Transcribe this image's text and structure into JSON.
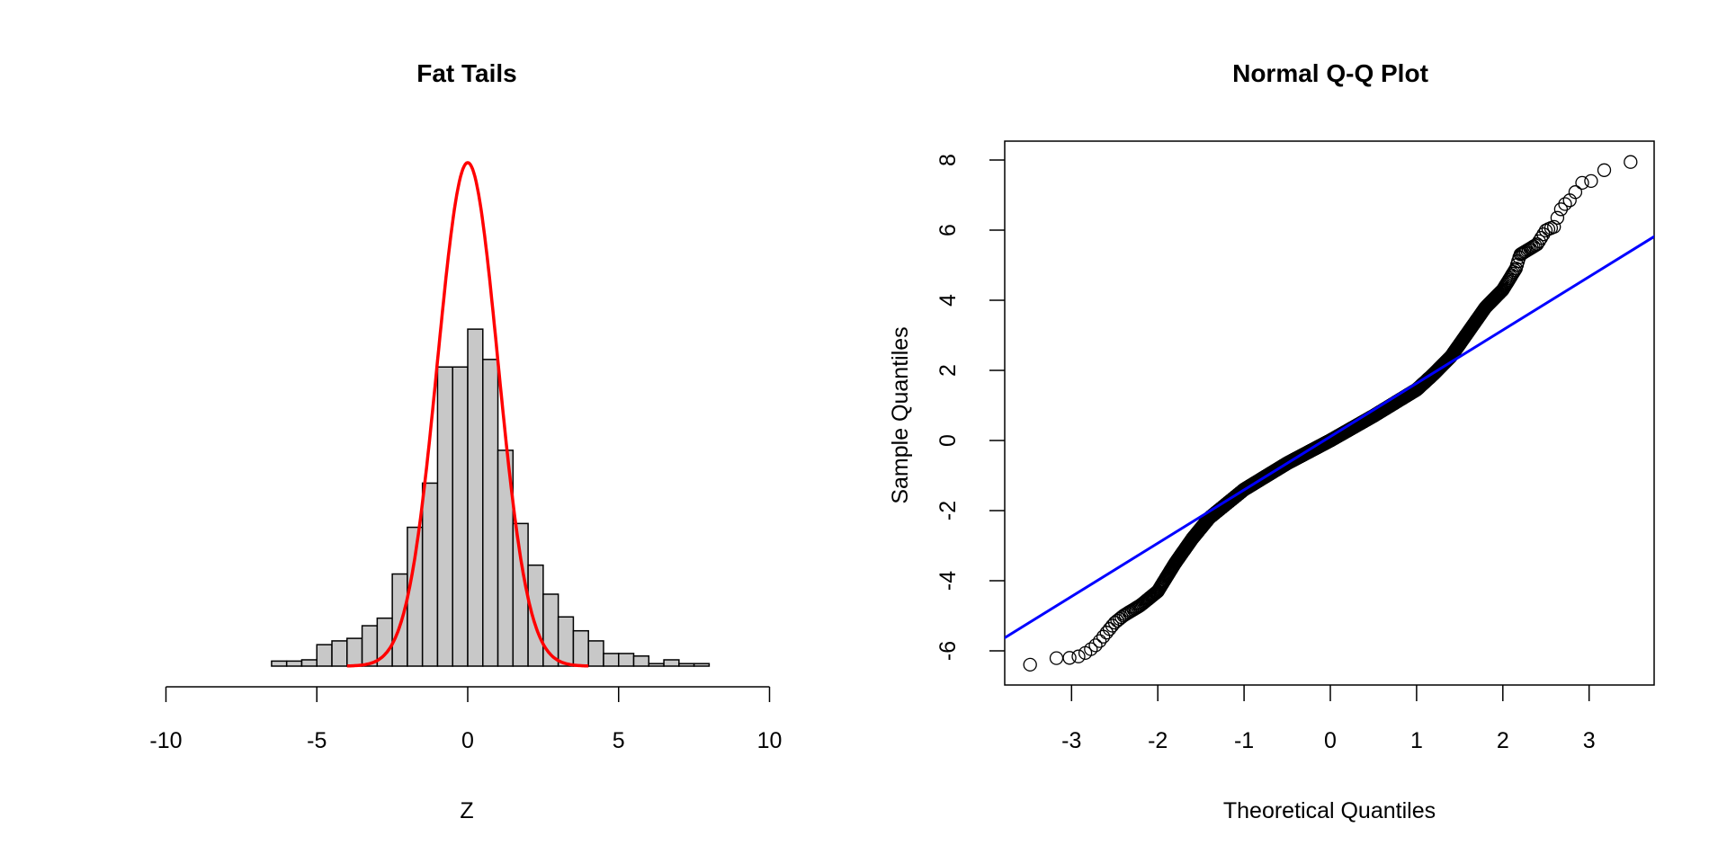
{
  "chart_data": [
    {
      "type": "bar",
      "subtype": "histogram",
      "title": "Fat Tails",
      "xlabel": "Z",
      "ylabel": "",
      "xlim": [
        -10,
        10
      ],
      "xticks": [
        "-10",
        "-5",
        "0",
        "5",
        "10"
      ],
      "xtick_values": [
        -10,
        -5,
        0,
        5,
        10
      ],
      "bin_start": -6.5,
      "bin_width": 0.5,
      "density": [
        0.004,
        0.004,
        0.005,
        0.017,
        0.02,
        0.022,
        0.032,
        0.038,
        0.073,
        0.11,
        0.145,
        0.237,
        0.237,
        0.267,
        0.243,
        0.171,
        0.113,
        0.08,
        0.057,
        0.039,
        0.028,
        0.02,
        0.01,
        0.01,
        0.008,
        0.002,
        0.005,
        0.002,
        0.002
      ],
      "bar_fill": "#c8c8c8",
      "overlay_curve": {
        "type": "normal density",
        "mean": 0,
        "sd": 1,
        "from": -4,
        "to": 4,
        "color": "#ff0000"
      }
    },
    {
      "type": "scatter",
      "subtype": "qq",
      "title": "Normal Q-Q Plot",
      "xlabel": "Theoretical Quantiles",
      "ylabel": "Sample Quantiles",
      "xlim": [
        -3.78,
        3.78
      ],
      "ylim": [
        -6.96,
        8.53
      ],
      "xticks": [
        "-3",
        "-2",
        "-1",
        "0",
        "1",
        "2",
        "3"
      ],
      "xtick_values": [
        -3,
        -2,
        -1,
        0,
        1,
        2,
        3
      ],
      "yticks": [
        "-6",
        "-4",
        "-2",
        "0",
        "2",
        "4",
        "6",
        "8"
      ],
      "ytick_values": [
        -6,
        -4,
        -2,
        0,
        2,
        4,
        6,
        8
      ],
      "n_points": 2000,
      "quantile_curve": [
        [
          -3.49,
          -6.4
        ],
        [
          -3.16,
          -6.2
        ],
        [
          -3.0,
          -6.2
        ],
        [
          -2.9,
          -6.15
        ],
        [
          -2.8,
          -6.0
        ],
        [
          -2.7,
          -5.8
        ],
        [
          -2.6,
          -5.5
        ],
        [
          -2.5,
          -5.2
        ],
        [
          -2.4,
          -5.0
        ],
        [
          -2.2,
          -4.7
        ],
        [
          -2.0,
          -4.3
        ],
        [
          -1.9,
          -3.9
        ],
        [
          -1.8,
          -3.5
        ],
        [
          -1.6,
          -2.8
        ],
        [
          -1.4,
          -2.2
        ],
        [
          -1.2,
          -1.8
        ],
        [
          -1.0,
          -1.4
        ],
        [
          -0.5,
          -0.65
        ],
        [
          0,
          0
        ],
        [
          0.5,
          0.7
        ],
        [
          1.0,
          1.45
        ],
        [
          1.2,
          1.9
        ],
        [
          1.4,
          2.4
        ],
        [
          1.6,
          3.1
        ],
        [
          1.8,
          3.8
        ],
        [
          2.0,
          4.3
        ],
        [
          2.15,
          4.9
        ],
        [
          2.2,
          5.3
        ],
        [
          2.4,
          5.6
        ],
        [
          2.5,
          6.0
        ],
        [
          2.6,
          6.1
        ],
        [
          2.65,
          6.5
        ],
        [
          2.7,
          6.7
        ],
        [
          2.8,
          6.9
        ],
        [
          2.9,
          7.35
        ],
        [
          3.0,
          7.35
        ],
        [
          3.16,
          7.7
        ],
        [
          3.49,
          7.95
        ]
      ],
      "qq_line": {
        "intercept": 0.11,
        "slope": 1.52,
        "color": "#0000ff"
      }
    }
  ]
}
